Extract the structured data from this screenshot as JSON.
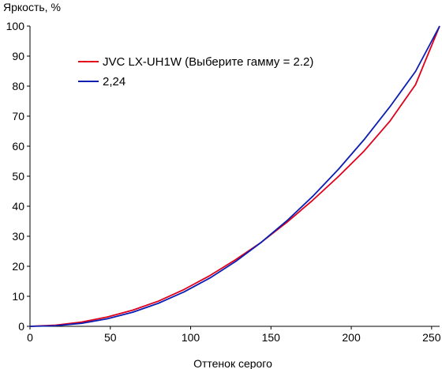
{
  "chart_data": {
    "type": "line",
    "title": "",
    "xlabel": "Оттенок серого",
    "ylabel": "Яркость, %",
    "xlim": [
      0,
      255
    ],
    "ylim": [
      0,
      100
    ],
    "xticks": [
      0,
      50,
      100,
      150,
      200,
      250
    ],
    "yticks": [
      0,
      10,
      20,
      30,
      40,
      50,
      60,
      70,
      80,
      90,
      100
    ],
    "grid": false,
    "legend": "top-left",
    "x": [
      0,
      16,
      32,
      48,
      64,
      80,
      96,
      112,
      128,
      144,
      160,
      176,
      192,
      208,
      224,
      240,
      255
    ],
    "series": [
      {
        "name": "JVC LX-UH1W (Выберите гамму = 2.2)",
        "color": "#e0001a",
        "values": [
          0,
          0.4,
          1.4,
          3.1,
          5.4,
          8.4,
          12.3,
          16.9,
          22.2,
          28.0,
          34.7,
          42.0,
          49.9,
          58.4,
          68.3,
          80.5,
          100
        ]
      },
      {
        "name": "2,24",
        "color": "#0a1eb4",
        "values": [
          0,
          0.2,
          1.0,
          2.5,
          4.7,
          7.7,
          11.5,
          16.1,
          21.6,
          28.0,
          35.2,
          43.3,
          52.3,
          62.2,
          73.1,
          84.9,
          100
        ]
      }
    ]
  }
}
